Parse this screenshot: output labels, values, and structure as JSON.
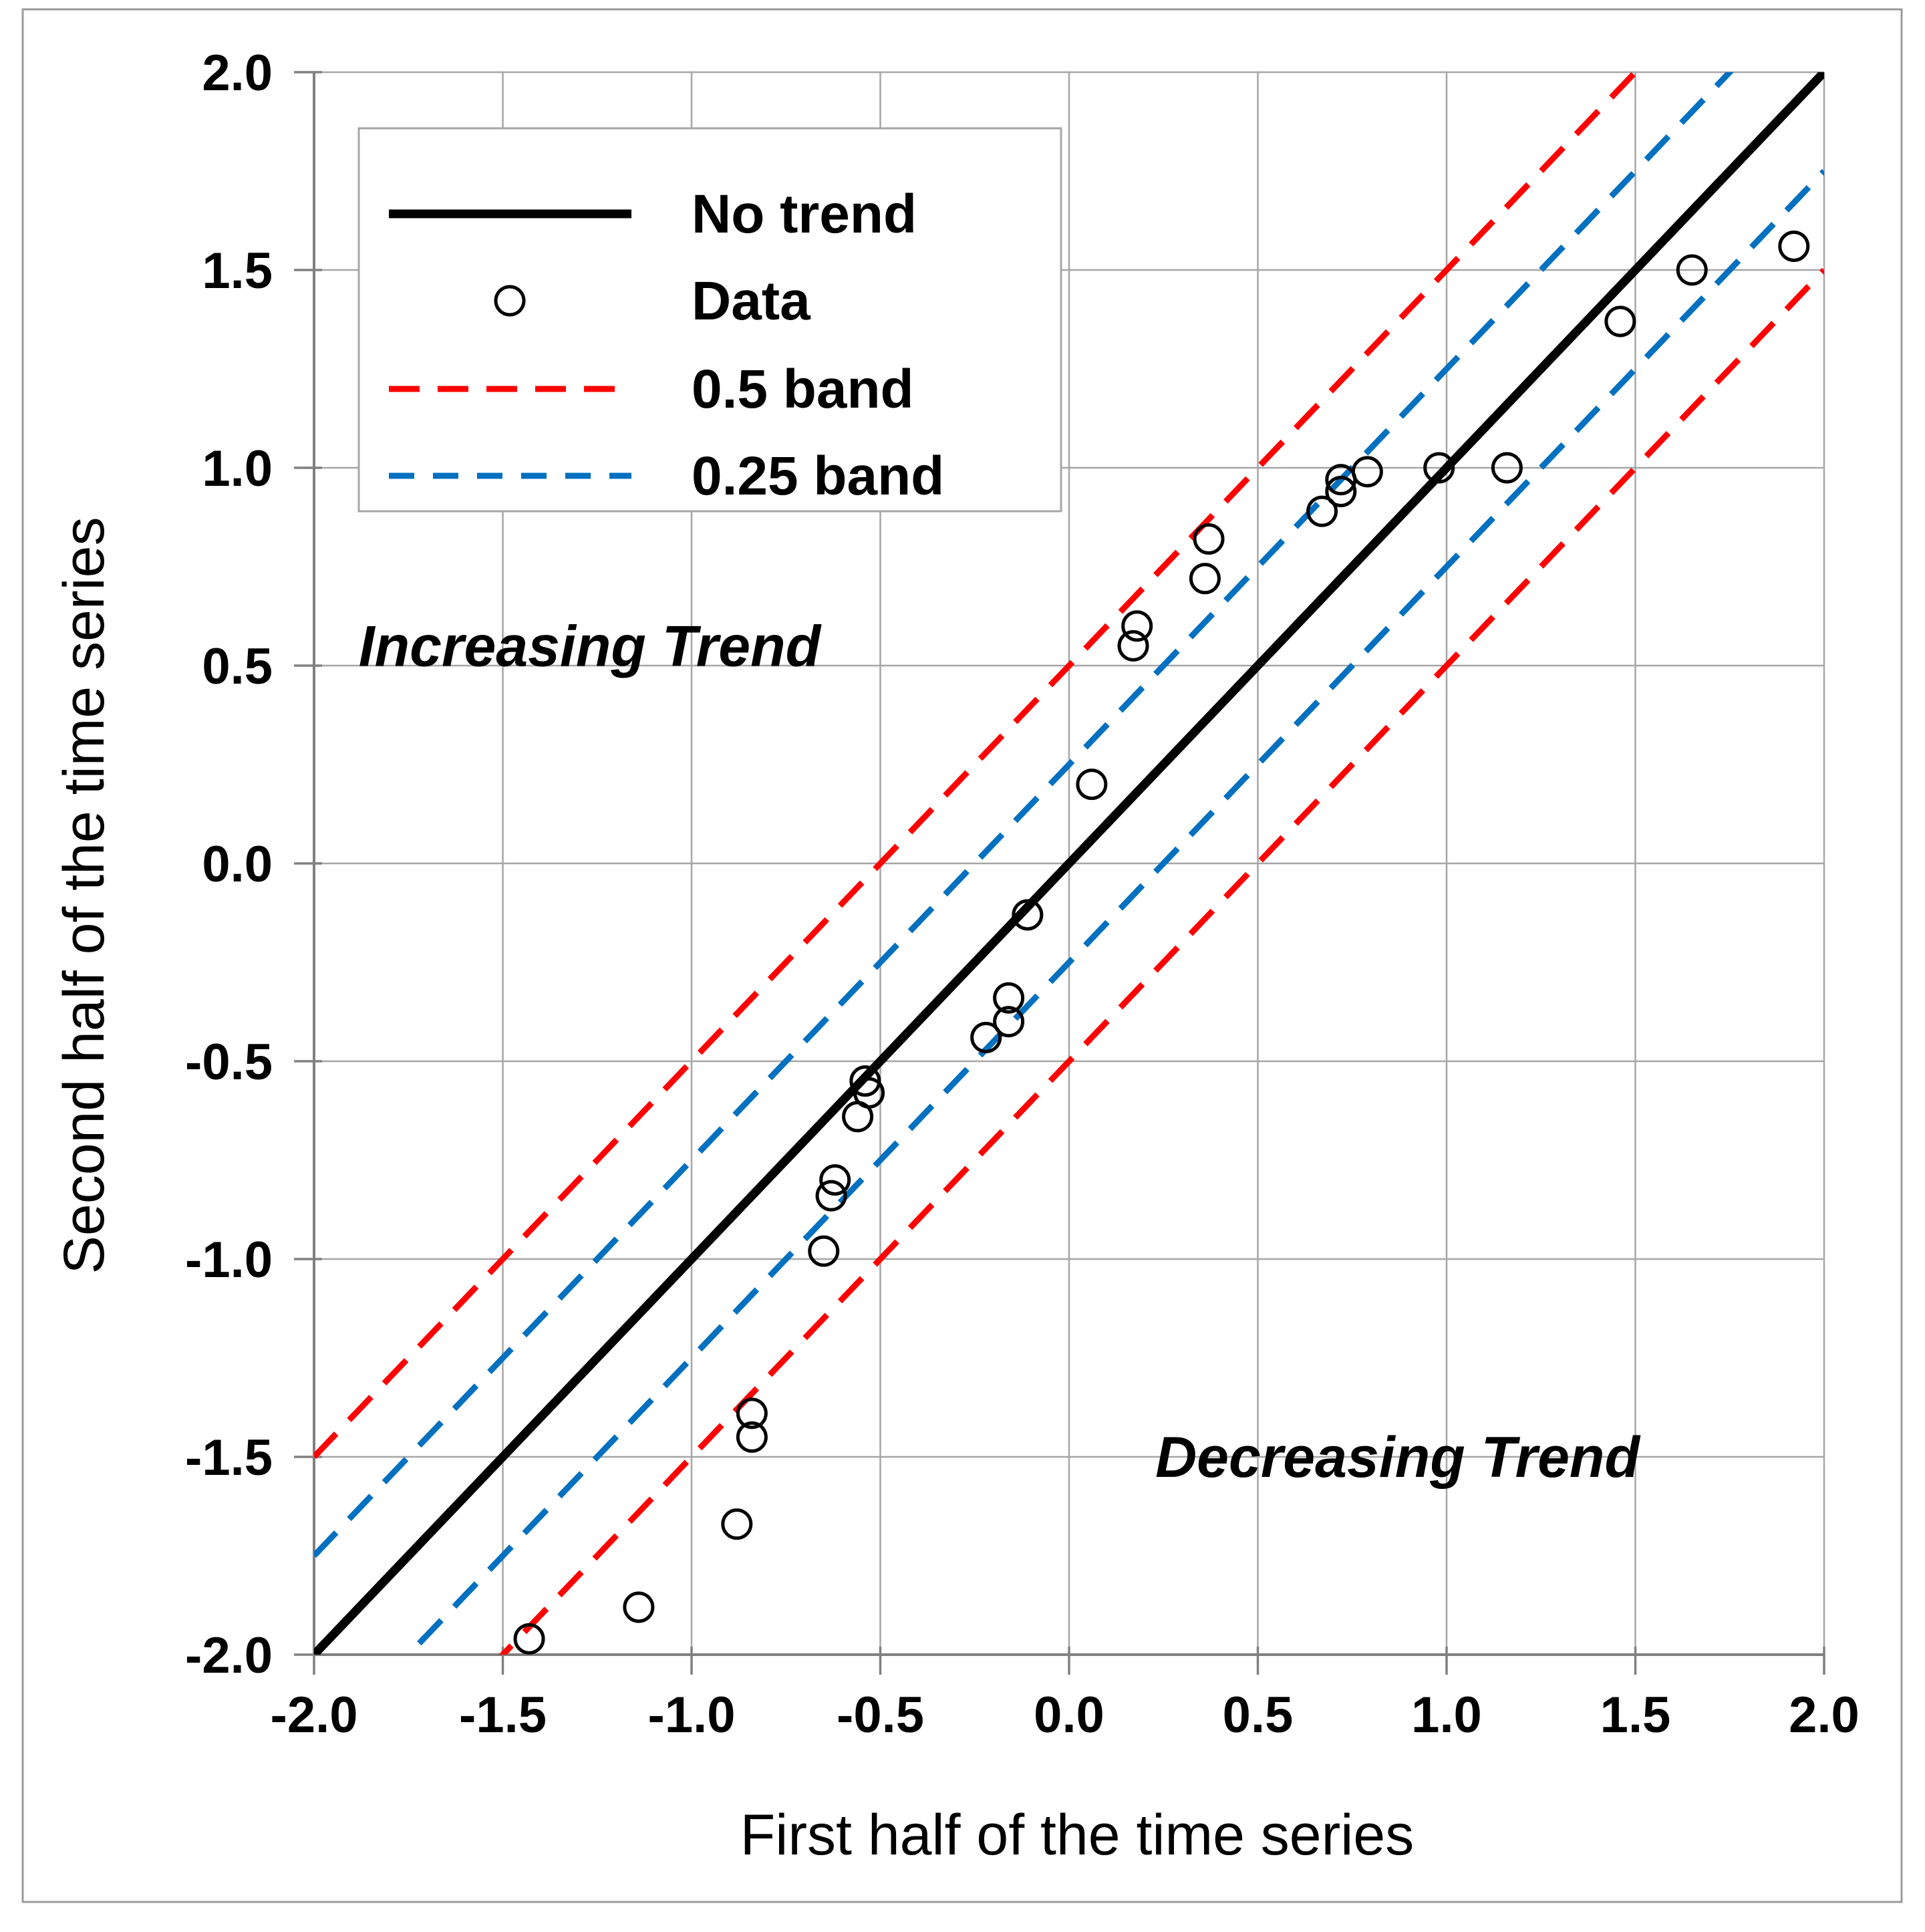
{
  "chart_data": {
    "type": "scatter",
    "title": "",
    "xlabel": "First half of the time series",
    "ylabel": "Second half of the time series",
    "xlim": [
      -2.0,
      2.0
    ],
    "ylim": [
      -2.0,
      2.0
    ],
    "grid": true,
    "x_ticks": [
      "-2.0",
      "-1.5",
      "-1.0",
      "-0.5",
      "0.0",
      "0.5",
      "1.0",
      "1.5",
      "2.0"
    ],
    "y_ticks": [
      "2.0",
      "1.5",
      "1.0",
      "0.5",
      "0.0",
      "-0.5",
      "-1.0",
      "-1.5",
      "-2.0"
    ],
    "legend_position": "upper-left-inside",
    "series": [
      {
        "name": "No trend",
        "type": "line",
        "style": "solid",
        "color": "#000000",
        "points": [
          [
            -2.0,
            -2.0
          ],
          [
            2.0,
            2.0
          ]
        ]
      },
      {
        "name": "Data",
        "type": "scatter",
        "marker": "open-circle",
        "color": "#000000",
        "points": [
          [
            -1.43,
            -1.96
          ],
          [
            -1.14,
            -1.88
          ],
          [
            -0.88,
            -1.67
          ],
          [
            -0.84,
            -1.45
          ],
          [
            -0.84,
            -1.39
          ],
          [
            -0.65,
            -0.98
          ],
          [
            -0.63,
            -0.84
          ],
          [
            -0.62,
            -0.8
          ],
          [
            -0.56,
            -0.64
          ],
          [
            -0.54,
            -0.55
          ],
          [
            -0.53,
            -0.58
          ],
          [
            -0.22,
            -0.44
          ],
          [
            -0.16,
            -0.4
          ],
          [
            -0.16,
            -0.34
          ],
          [
            -0.11,
            -0.13
          ],
          [
            0.06,
            0.2
          ],
          [
            0.17,
            0.55
          ],
          [
            0.18,
            0.6
          ],
          [
            0.36,
            0.72
          ],
          [
            0.37,
            0.82
          ],
          [
            0.67,
            0.89
          ],
          [
            0.72,
            0.94
          ],
          [
            0.72,
            0.97
          ],
          [
            0.79,
            0.99
          ],
          [
            0.98,
            1.0
          ],
          [
            1.16,
            1.0
          ],
          [
            1.46,
            1.37
          ],
          [
            1.65,
            1.5
          ],
          [
            1.92,
            1.56
          ]
        ]
      },
      {
        "name": "0.5 band",
        "type": "band-pair",
        "style": "dashed",
        "color": "#FF0000",
        "offset": 0.5
      },
      {
        "name": "0.25 band",
        "type": "band-pair",
        "style": "dashed",
        "color": "#0070C0",
        "offset": 0.25
      }
    ],
    "annotations": [
      {
        "text": "Increasing Trend",
        "x": -1.27,
        "y": 0.55
      },
      {
        "text": "Decreasing Trend",
        "x": 0.87,
        "y": -1.5
      }
    ]
  },
  "legend": {
    "items": [
      {
        "label": "No trend",
        "sample": "solid-line",
        "color": "#000000"
      },
      {
        "label": "Data",
        "sample": "open-circle",
        "color": "#000000"
      },
      {
        "label": "0.5 band",
        "sample": "dashed-line",
        "color": "#FF0000"
      },
      {
        "label": "0.25 band",
        "sample": "dashed-line",
        "color": "#0070C0"
      }
    ]
  },
  "colors": {
    "gridline": "#A6A6A6",
    "axis_spine": "#808080",
    "figure_border": "#9B9B9B",
    "background": "#FFFFFF"
  }
}
